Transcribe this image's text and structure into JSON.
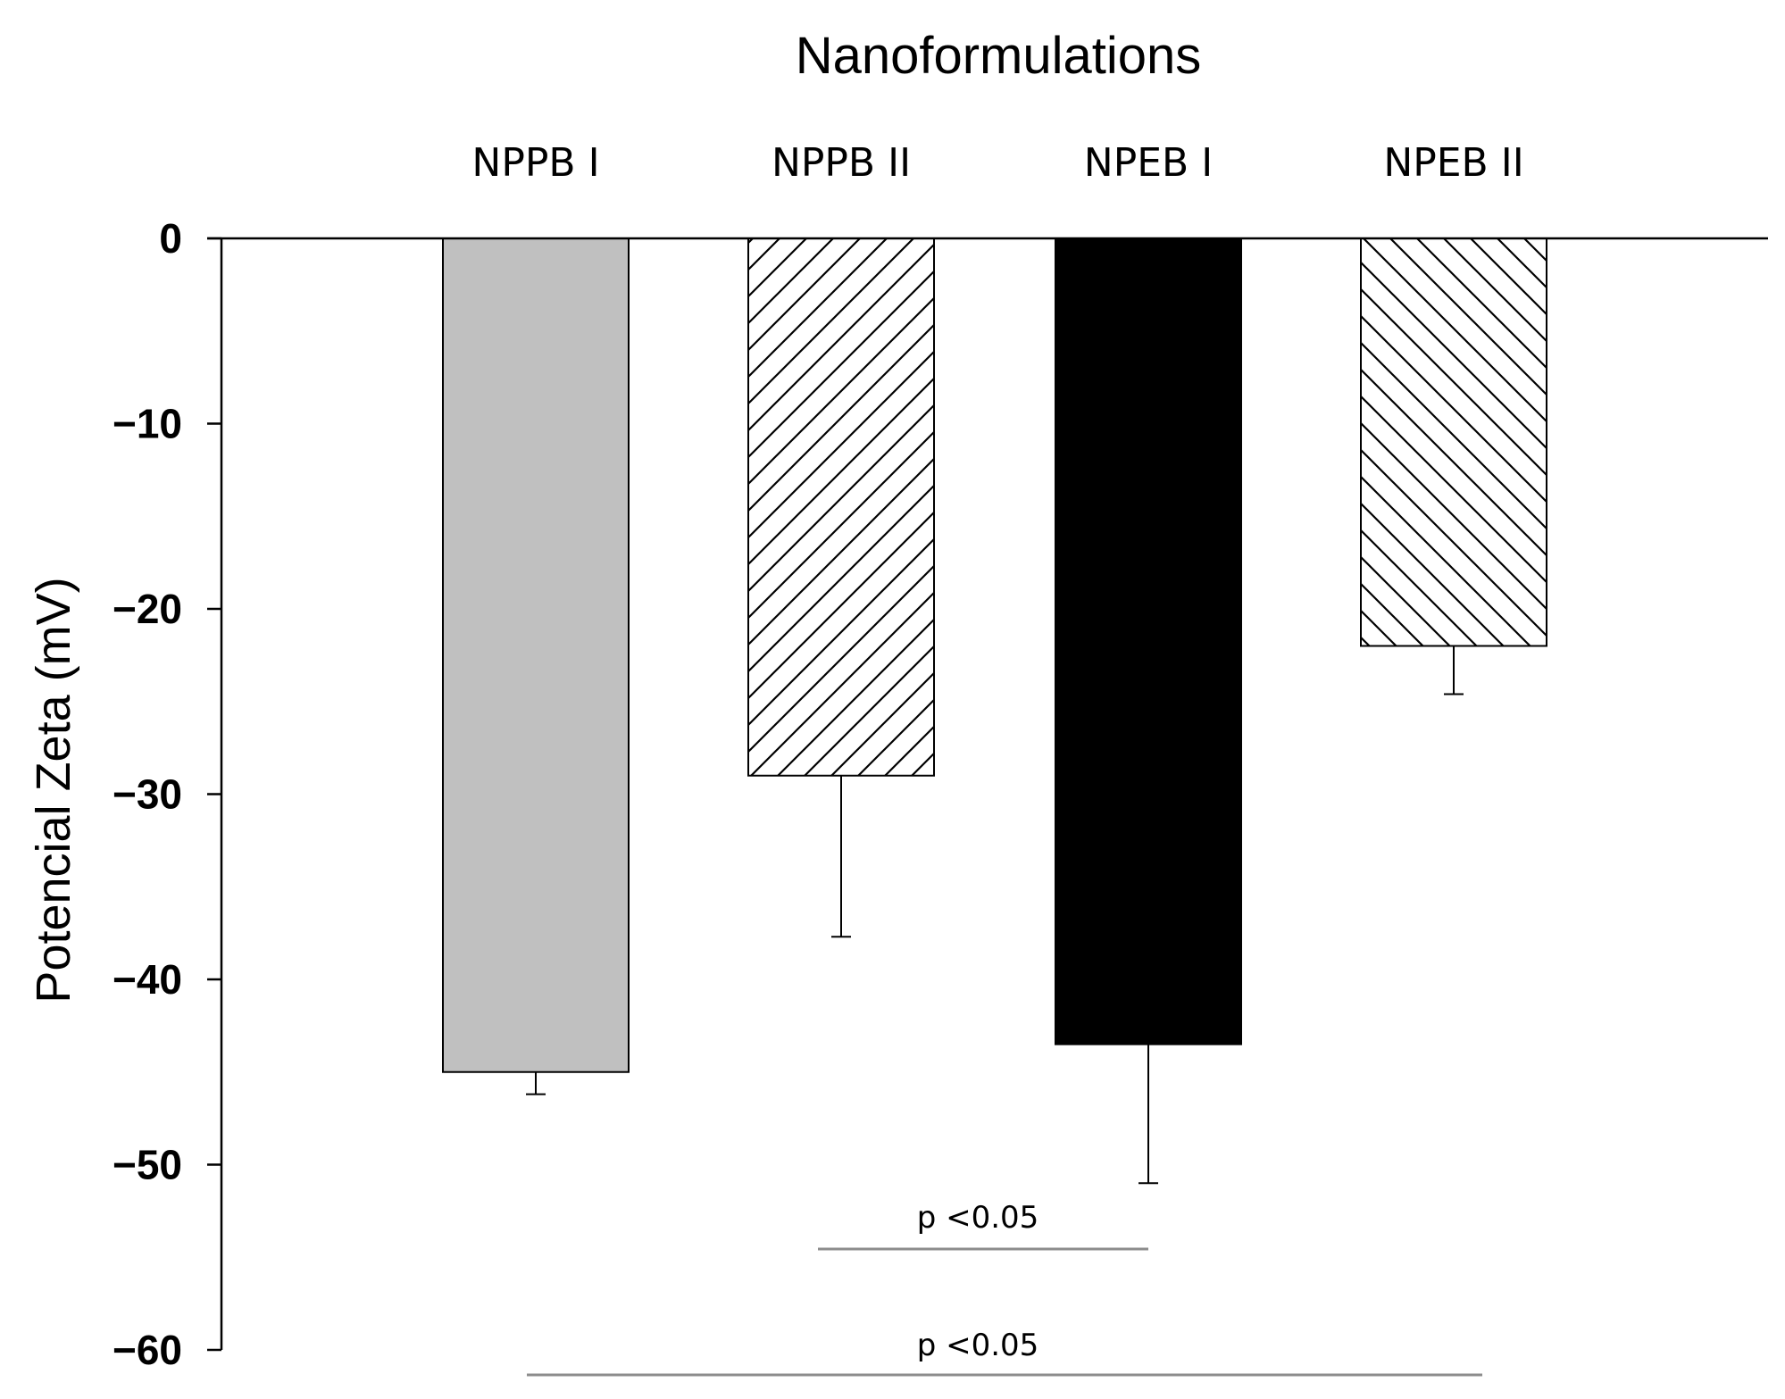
{
  "chart_data": {
    "type": "bar",
    "title": "Nanoformulations",
    "xlabel": "",
    "ylabel": "Potencial Zeta (mV)",
    "categories": [
      "NPPB I",
      "NPPB II",
      "NPEB I",
      "NPEB II"
    ],
    "series": [
      {
        "values": [
          -45,
          -29,
          -43.5,
          -22
        ],
        "errors": [
          1.2,
          8.7,
          7.5,
          2.6
        ],
        "fills": [
          "#c0c0c0",
          "hatch-forward",
          "#000000",
          "hatch-backward"
        ]
      }
    ],
    "ylim": [
      -60,
      0
    ],
    "yticks": [
      "0",
      "−10",
      "−20",
      "−30",
      "−40",
      "−50",
      "−60"
    ],
    "ytick_values": [
      0,
      -10,
      -20,
      -30,
      -40,
      -50,
      -60
    ],
    "category_labels_position": "top",
    "grid": false,
    "annotations": [
      {
        "text": "p <0.05",
        "from": "NPPB II",
        "to": "NPEB I"
      },
      {
        "text": "p <0.05",
        "from": "NPPB I",
        "to": "NPEB II"
      }
    ]
  }
}
